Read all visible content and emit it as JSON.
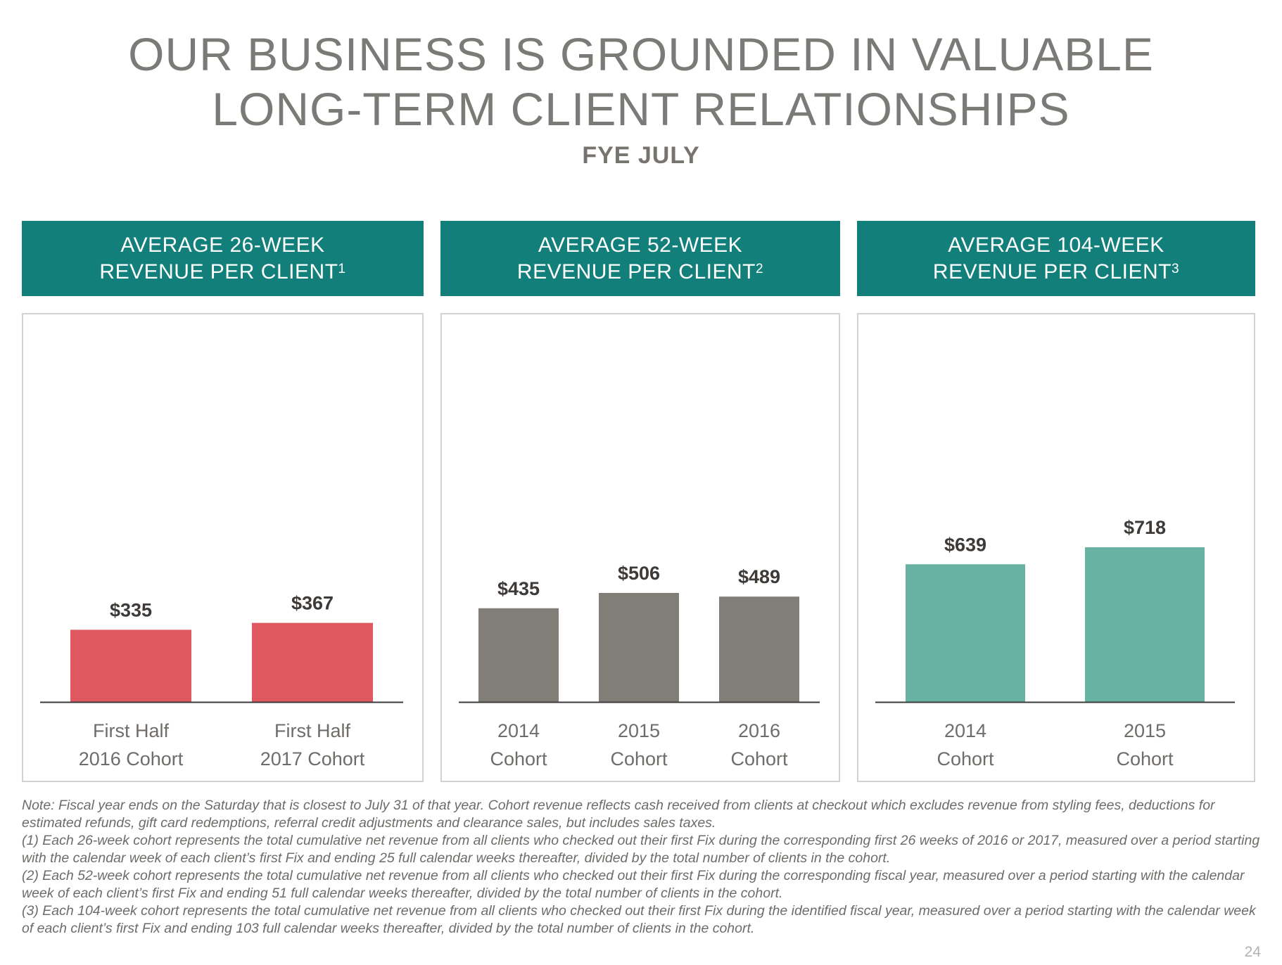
{
  "title": {
    "line1": "OUR BUSINESS IS GROUNDED IN VALUABLE",
    "line2": "LONG-TERM CLIENT RELATIONSHIPS"
  },
  "subtitle": "FYE JULY",
  "panels": [
    {
      "header_line1": "AVERAGE 26-WEEK",
      "header_line2": "REVENUE PER CLIENT",
      "footnote": "1"
    },
    {
      "header_line1": "AVERAGE 52-WEEK",
      "header_line2": "REVENUE PER CLIENT",
      "footnote": "2"
    },
    {
      "header_line1": "AVERAGE 104-WEEK",
      "header_line2": "REVENUE PER CLIENT",
      "footnote": "3"
    }
  ],
  "chart_data": [
    {
      "type": "bar",
      "title": "AVERAGE 26-WEEK REVENUE PER CLIENT",
      "categories": [
        [
          "First Half",
          "2016 Cohort"
        ],
        [
          "First Half",
          "2017 Cohort"
        ]
      ],
      "values": [
        335,
        367
      ],
      "labels": [
        "$335",
        "$367"
      ],
      "color": "#df5860",
      "ylim": [
        0,
        800
      ]
    },
    {
      "type": "bar",
      "title": "AVERAGE 52-WEEK REVENUE PER CLIENT",
      "categories": [
        [
          "2014",
          "Cohort"
        ],
        [
          "2015",
          "Cohort"
        ],
        [
          "2016",
          "Cohort"
        ]
      ],
      "values": [
        435,
        506,
        489
      ],
      "labels": [
        "$435",
        "$506",
        "$489"
      ],
      "color": "#817d77",
      "ylim": [
        0,
        800
      ]
    },
    {
      "type": "bar",
      "title": "AVERAGE 104-WEEK REVENUE PER CLIENT",
      "categories": [
        [
          "2014",
          "Cohort"
        ],
        [
          "2015",
          "Cohort"
        ]
      ],
      "values": [
        639,
        718
      ],
      "labels": [
        "$639",
        "$718"
      ],
      "color": "#68b2a4",
      "ylim": [
        0,
        800
      ]
    }
  ],
  "colors": {
    "header_bg": "#137f7a",
    "label_text": "#3d3a38",
    "category_text": "#6f6c69",
    "axis": "#3a3a3a"
  },
  "notes": [
    "Note: Fiscal year ends on the Saturday that is closest to July 31 of that year. Cohort revenue reflects cash received from clients at checkout which excludes revenue from styling fees, deductions for estimated refunds, gift card redemptions, referral credit adjustments and clearance sales, but includes sales taxes.",
    "(1) Each 26-week cohort represents the total cumulative net revenue from all clients who checked out their first Fix during the corresponding first 26 weeks of 2016 or 2017, measured over a period starting with the calendar week of each client’s first Fix and ending 25 full calendar weeks thereafter, divided by the total number of clients in the cohort.",
    "(2) Each 52-week cohort represents the total cumulative net revenue from all clients who checked out their first Fix during the corresponding fiscal year, measured over a period starting with the calendar week of each client’s first Fix and ending 51 full calendar weeks thereafter, divided by the total number of clients in the cohort.",
    "(3) Each 104-week cohort represents the total cumulative net revenue from all clients who checked out their first Fix during the identified fiscal year, measured over a period starting with the calendar week of each client’s first Fix and ending 103 full calendar weeks thereafter, divided by the total number of clients in the cohort."
  ],
  "page_number": "24"
}
